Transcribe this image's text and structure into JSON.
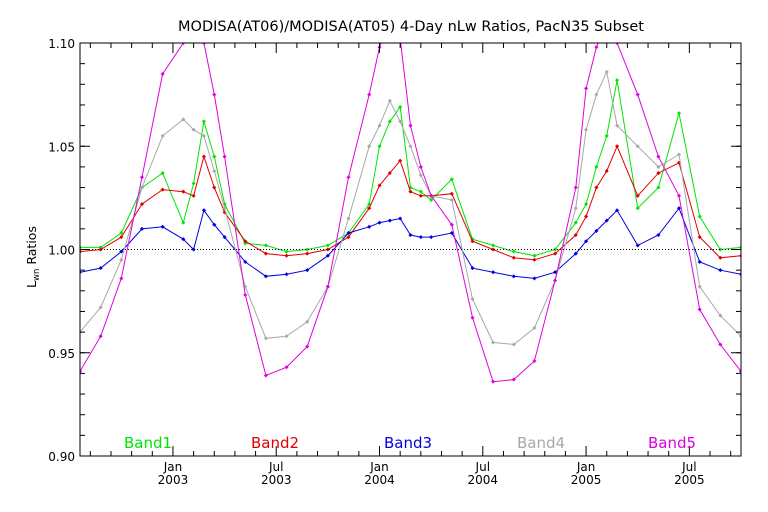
{
  "chart_data": {
    "type": "line",
    "title": "MODISA(AT06)/MODISA(AT05) 4-Day nLw Ratios, PacN35 Subset",
    "ylabel": "Lwn Ratios",
    "ylabel_parts": {
      "main": "L",
      "sub": "wn",
      "rest": " Ratios"
    },
    "xlim": [
      0,
      32
    ],
    "ylim": [
      0.9,
      1.1
    ],
    "reference_line": 1.0,
    "grid": false,
    "legend_placement": "bottom",
    "y_ticks": [
      {
        "value": 0.9,
        "label": "0.90"
      },
      {
        "value": 0.95,
        "label": "0.95"
      },
      {
        "value": 1.0,
        "label": "1.00"
      },
      {
        "value": 1.05,
        "label": "1.05"
      },
      {
        "value": 1.1,
        "label": "1.10"
      }
    ],
    "x_major_ticks": [
      {
        "value": 4.5,
        "month": "Jan",
        "year": "2003"
      },
      {
        "value": 9.5,
        "month": "Jul",
        "year": "2003"
      },
      {
        "value": 14.5,
        "month": "Jan",
        "year": "2004"
      },
      {
        "value": 19.5,
        "month": "Jul",
        "year": "2004"
      },
      {
        "value": 24.5,
        "month": "Jan",
        "year": "2005"
      },
      {
        "value": 29.5,
        "month": "Jul",
        "year": "2005"
      }
    ],
    "x_minor_ticks": [
      0.5,
      1.5,
      2.5,
      3.5,
      5.5,
      6.5,
      7.5,
      8.5,
      10.5,
      11.5,
      12.5,
      13.5,
      15.5,
      16.5,
      17.5,
      18.5,
      20.5,
      21.5,
      22.5,
      23.5,
      25.5,
      26.5,
      27.5,
      28.5,
      30.5,
      31.5
    ],
    "y_minor_step": 0.01,
    "x": [
      0,
      1,
      2,
      3,
      4,
      5,
      5.5,
      6,
      6.5,
      7,
      8,
      9,
      10,
      11,
      12,
      13,
      14,
      14.5,
      15,
      15.5,
      16,
      16.5,
      17,
      18,
      19,
      20,
      21,
      22,
      23,
      24,
      24.5,
      25,
      25.5,
      26,
      27,
      28,
      29,
      30,
      31,
      32
    ],
    "series": [
      {
        "name": "Band1",
        "color": "#00e400",
        "values": [
          1.001,
          1.001,
          1.008,
          1.03,
          1.037,
          1.013,
          1.032,
          1.062,
          1.045,
          1.022,
          1.003,
          1.002,
          0.999,
          1.0,
          1.002,
          1.008,
          1.022,
          1.05,
          1.062,
          1.069,
          1.03,
          1.028,
          1.024,
          1.034,
          1.005,
          1.002,
          0.999,
          0.997,
          1.0,
          1.013,
          1.022,
          1.04,
          1.055,
          1.082,
          1.02,
          1.03,
          1.066,
          1.016,
          1.0,
          1.001
        ]
      },
      {
        "name": "Band2",
        "color": "#e00000",
        "values": [
          0.999,
          1.0,
          1.006,
          1.022,
          1.029,
          1.028,
          1.026,
          1.045,
          1.03,
          1.018,
          1.004,
          0.998,
          0.997,
          0.998,
          1.0,
          1.006,
          1.02,
          1.031,
          1.037,
          1.043,
          1.028,
          1.026,
          1.026,
          1.027,
          1.004,
          1.0,
          0.996,
          0.995,
          0.998,
          1.007,
          1.016,
          1.03,
          1.038,
          1.05,
          1.026,
          1.037,
          1.042,
          1.006,
          0.996,
          0.997
        ]
      },
      {
        "name": "Band3",
        "color": "#0000e0",
        "values": [
          0.989,
          0.991,
          0.999,
          1.01,
          1.011,
          1.005,
          1.0,
          1.019,
          1.012,
          1.006,
          0.994,
          0.987,
          0.988,
          0.99,
          0.997,
          1.008,
          1.011,
          1.013,
          1.014,
          1.015,
          1.007,
          1.006,
          1.006,
          1.008,
          0.991,
          0.989,
          0.987,
          0.986,
          0.989,
          0.998,
          1.004,
          1.009,
          1.014,
          1.019,
          1.002,
          1.007,
          1.02,
          0.994,
          0.99,
          0.988
        ]
      },
      {
        "name": "Band4",
        "color": "#a8a8a8",
        "values": [
          0.96,
          0.972,
          0.995,
          1.03,
          1.055,
          1.063,
          1.058,
          1.055,
          1.038,
          1.02,
          0.982,
          0.957,
          0.958,
          0.965,
          0.982,
          1.015,
          1.05,
          1.06,
          1.072,
          1.062,
          1.05,
          1.036,
          1.026,
          1.024,
          0.976,
          0.955,
          0.954,
          0.962,
          0.985,
          1.02,
          1.058,
          1.075,
          1.086,
          1.06,
          1.05,
          1.04,
          1.046,
          0.982,
          0.968,
          0.958
        ]
      },
      {
        "name": "Band5",
        "color": "#e000e0",
        "values": [
          0.941,
          0.958,
          0.986,
          1.035,
          1.085,
          1.1,
          1.108,
          1.1,
          1.075,
          1.045,
          0.978,
          0.939,
          0.943,
          0.953,
          0.982,
          1.035,
          1.075,
          1.098,
          1.11,
          1.102,
          1.06,
          1.04,
          1.026,
          1.012,
          0.967,
          0.936,
          0.937,
          0.946,
          0.985,
          1.03,
          1.078,
          1.098,
          1.11,
          1.1,
          1.075,
          1.045,
          1.026,
          0.971,
          0.954,
          0.941
        ]
      }
    ]
  }
}
